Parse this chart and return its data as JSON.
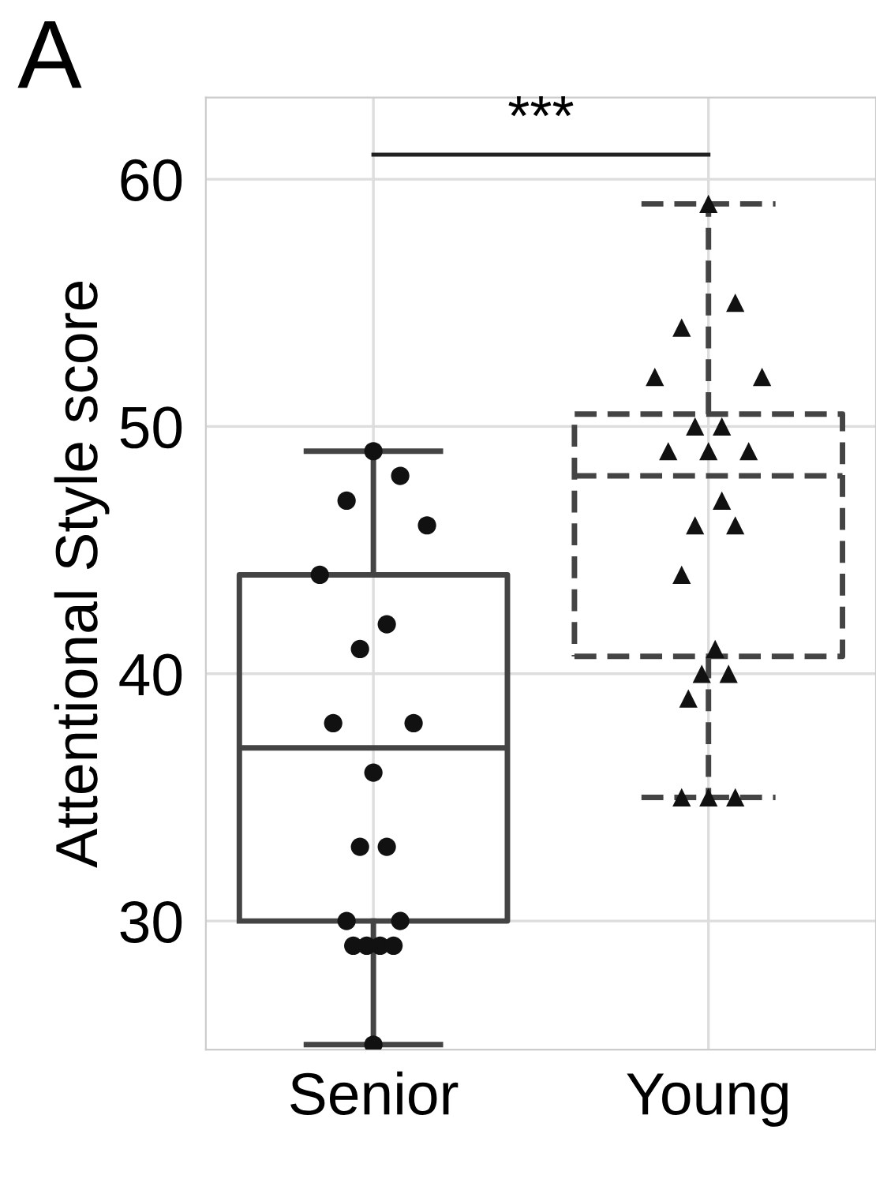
{
  "chart_data": {
    "type": "box",
    "title": "A",
    "ylabel": "Attentional Style score",
    "categories": [
      "Senior",
      "Young"
    ],
    "ylim": [
      24.8,
      63.3
    ],
    "yticks": [
      30,
      40,
      50,
      60
    ],
    "grid": true,
    "annotations": [
      "***"
    ],
    "series": [
      {
        "color": "#444444",
        "line_style": "solid",
        "boxes": [
          {
            "low": 25,
            "q1": 30,
            "median": 37,
            "q3": 44,
            "high": 49
          },
          null
        ]
      },
      {
        "color": "#444444",
        "line_style": "dashed",
        "boxes": [
          null,
          {
            "low": 35,
            "q1": 40.7,
            "median": 48,
            "q3": 50.5,
            "high": 59
          }
        ]
      },
      {
        "type": "scatter",
        "color": "#111111",
        "marker": "circle",
        "x": [
          "Senior",
          "Senior",
          "Senior",
          "Senior",
          "Senior",
          "Senior",
          "Senior",
          "Senior",
          "Senior",
          "Senior",
          "Senior",
          "Senior",
          "Senior",
          "Senior",
          "Senior",
          "Senior",
          "Senior",
          "Senior",
          "Senior"
        ],
        "values": [
          49,
          48,
          47,
          46,
          44,
          42,
          41,
          38,
          38,
          36,
          33,
          33,
          30,
          30,
          29,
          29,
          29,
          29,
          25
        ]
      },
      {
        "type": "scatter",
        "color": "#111111",
        "marker": "triangle",
        "x": [
          "Young",
          "Young",
          "Young",
          "Young",
          "Young",
          "Young",
          "Young",
          "Young",
          "Young",
          "Young",
          "Young",
          "Young",
          "Young",
          "Young",
          "Young",
          "Young",
          "Young",
          "Young",
          "Young",
          "Young",
          "Young"
        ],
        "values": [
          59,
          55,
          54,
          52,
          52,
          50,
          50,
          49,
          49,
          49,
          47,
          46,
          46,
          44,
          41,
          40,
          40,
          39,
          35,
          35,
          35
        ]
      }
    ]
  }
}
